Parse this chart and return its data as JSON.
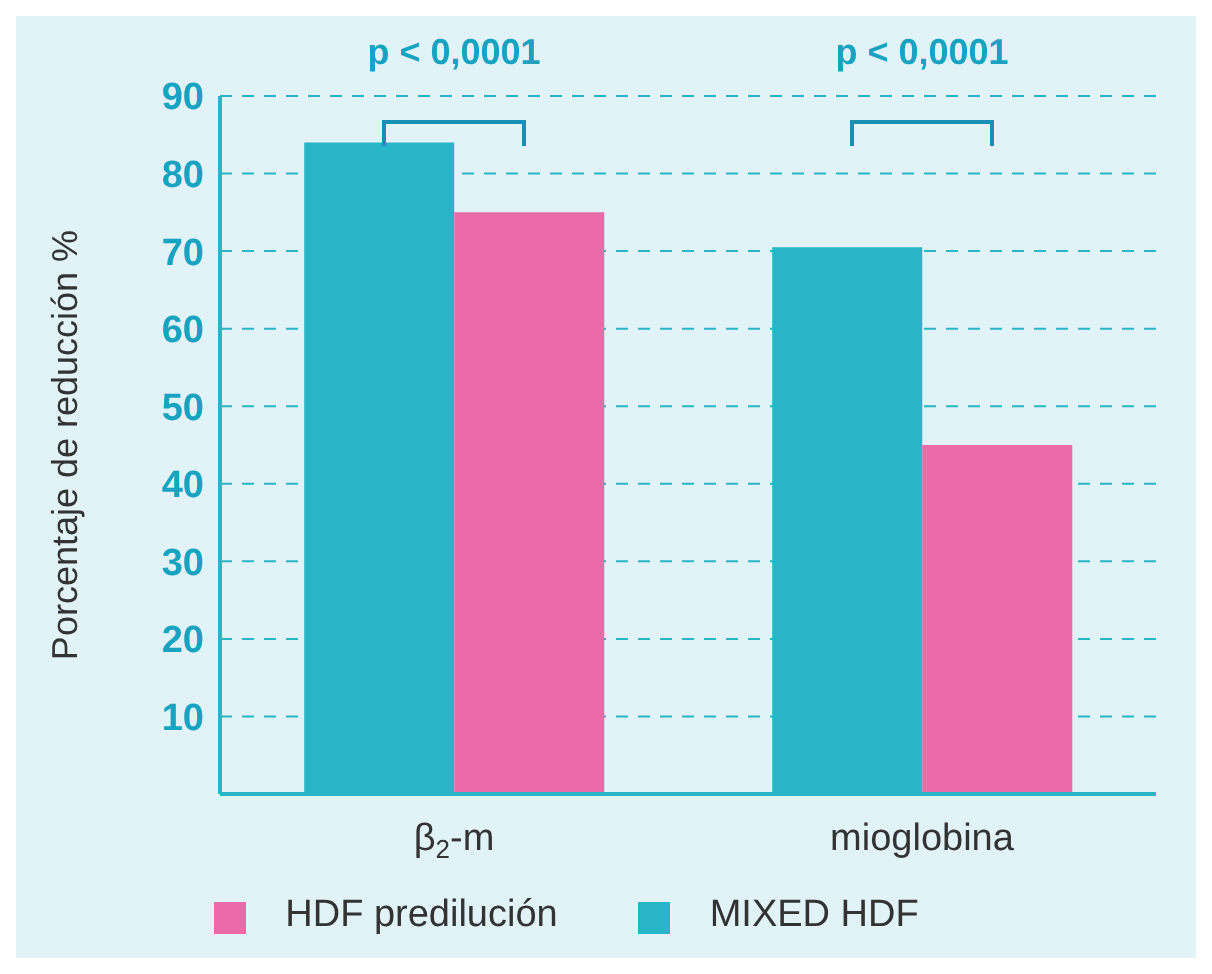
{
  "chart_data": {
    "type": "bar",
    "ylabel": "Porcentaje de reducción %",
    "categories": [
      "β$_{2}$-m",
      "mioglobina"
    ],
    "series": [
      {
        "name": "MIXED HDF",
        "color": "#29b5c8",
        "values": [
          84,
          70.5
        ]
      },
      {
        "name": "HDF predilución",
        "color": "#ec6aa8",
        "values": [
          75,
          45
        ]
      }
    ],
    "ylim": [
      0,
      90
    ],
    "yticks": [
      10,
      20,
      30,
      40,
      50,
      60,
      70,
      80,
      90
    ],
    "grid": "y",
    "legend": "bottom",
    "annotations": [
      "p < 0,0001",
      "p < 0,0001"
    ]
  }
}
